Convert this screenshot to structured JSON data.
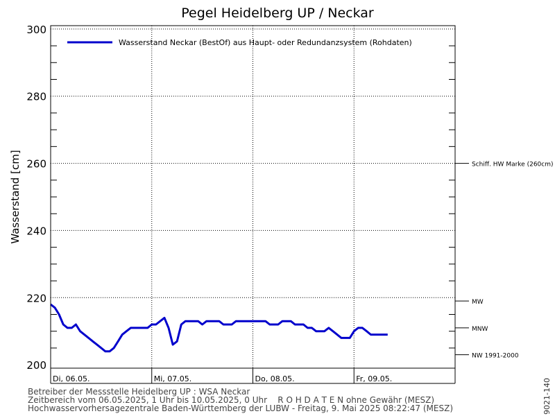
{
  "chart_data": {
    "type": "line",
    "title": "Pegel Heidelberg UP / Neckar",
    "ylabel": "Wasserstand [cm]",
    "xlabel": "",
    "ylim": [
      199,
      301
    ],
    "y_ticks": [
      200,
      220,
      240,
      260,
      280,
      300
    ],
    "x_domain": [
      "2025-05-06T00:00",
      "2025-05-10T00:00"
    ],
    "x_tick_labels": [
      {
        "at": "2025-05-06T00:00",
        "label": "Di, 06.05."
      },
      {
        "at": "2025-05-07T00:00",
        "label": "Mi, 07.05."
      },
      {
        "at": "2025-05-08T00:00",
        "label": "Do, 08.05."
      },
      {
        "at": "2025-05-09T00:00",
        "label": "Fr, 09.05."
      }
    ],
    "grid": true,
    "legend": {
      "placement": "top-left",
      "entries": [
        "Wasserstand Neckar (BestOf)  aus Haupt- oder Redundanzsystem (Rohdaten)"
      ]
    },
    "reference_lines": [
      {
        "label": "Schiff. HW Marke (260cm)",
        "value": 260
      },
      {
        "label": "MW",
        "value": 219
      },
      {
        "label": "MNW",
        "value": 211
      },
      {
        "label": "NW 1991-2000",
        "value": 203
      }
    ],
    "series": [
      {
        "name": "Wasserstand Neckar (BestOf)  aus Haupt- oder Redundanzsystem (Rohdaten)",
        "color": "#0000cc",
        "x": [
          "2025-05-06T00:00",
          "2025-05-06T01:00",
          "2025-05-06T02:00",
          "2025-05-06T03:00",
          "2025-05-06T04:00",
          "2025-05-06T05:00",
          "2025-05-06T06:00",
          "2025-05-06T07:00",
          "2025-05-06T08:00",
          "2025-05-06T09:00",
          "2025-05-06T10:00",
          "2025-05-06T11:00",
          "2025-05-06T12:00",
          "2025-05-06T13:00",
          "2025-05-06T14:00",
          "2025-05-06T15:00",
          "2025-05-06T16:00",
          "2025-05-06T17:00",
          "2025-05-06T18:00",
          "2025-05-06T19:00",
          "2025-05-06T20:00",
          "2025-05-06T21:00",
          "2025-05-06T22:00",
          "2025-05-06T23:00",
          "2025-05-07T00:00",
          "2025-05-07T01:00",
          "2025-05-07T02:00",
          "2025-05-07T03:00",
          "2025-05-07T04:00",
          "2025-05-07T05:00",
          "2025-05-07T06:00",
          "2025-05-07T07:00",
          "2025-05-07T08:00",
          "2025-05-07T09:00",
          "2025-05-07T10:00",
          "2025-05-07T11:00",
          "2025-05-07T12:00",
          "2025-05-07T13:00",
          "2025-05-07T14:00",
          "2025-05-07T15:00",
          "2025-05-07T16:00",
          "2025-05-07T17:00",
          "2025-05-07T18:00",
          "2025-05-07T19:00",
          "2025-05-07T20:00",
          "2025-05-07T21:00",
          "2025-05-07T22:00",
          "2025-05-07T23:00",
          "2025-05-08T00:00",
          "2025-05-08T01:00",
          "2025-05-08T02:00",
          "2025-05-08T03:00",
          "2025-05-08T04:00",
          "2025-05-08T05:00",
          "2025-05-08T06:00",
          "2025-05-08T07:00",
          "2025-05-08T08:00",
          "2025-05-08T09:00",
          "2025-05-08T10:00",
          "2025-05-08T11:00",
          "2025-05-08T12:00",
          "2025-05-08T13:00",
          "2025-05-08T14:00",
          "2025-05-08T15:00",
          "2025-05-08T16:00",
          "2025-05-08T17:00",
          "2025-05-08T18:00",
          "2025-05-08T19:00",
          "2025-05-08T20:00",
          "2025-05-08T21:00",
          "2025-05-08T22:00",
          "2025-05-08T23:00",
          "2025-05-09T00:00",
          "2025-05-09T01:00",
          "2025-05-09T02:00",
          "2025-05-09T03:00",
          "2025-05-09T04:00",
          "2025-05-09T05:00",
          "2025-05-09T06:00",
          "2025-05-09T07:00",
          "2025-05-09T08:00"
        ],
        "values": [
          218,
          217,
          215,
          212,
          211,
          211,
          212,
          210,
          209,
          208,
          207,
          206,
          205,
          204,
          204,
          205,
          207,
          209,
          210,
          211,
          211,
          211,
          211,
          211,
          212,
          212,
          213,
          214,
          211,
          206,
          207,
          212,
          213,
          213,
          213,
          213,
          212,
          213,
          213,
          213,
          213,
          212,
          212,
          212,
          213,
          213,
          213,
          213,
          213,
          213,
          213,
          213,
          212,
          212,
          212,
          213,
          213,
          213,
          212,
          212,
          212,
          211,
          211,
          210,
          210,
          210,
          211,
          210,
          209,
          208,
          208,
          208,
          210,
          211,
          211,
          210,
          209,
          209,
          209,
          209,
          209
        ]
      }
    ]
  },
  "footer": {
    "line1": "Betreiber der Messstelle Heidelberg UP : WSA Neckar",
    "line2": "Zeitbereich vom 06.05.2025, 1 Uhr bis 10.05.2025, 0 Uhr    R O H D A T E N ohne Gewähr (MESZ)",
    "line3": "Hochwasservorhersagezentrale Baden-Württemberg der LUBW - Freitag, 9. Mai 2025 08:22:47 (MESZ)"
  },
  "side_id": "9021-140"
}
